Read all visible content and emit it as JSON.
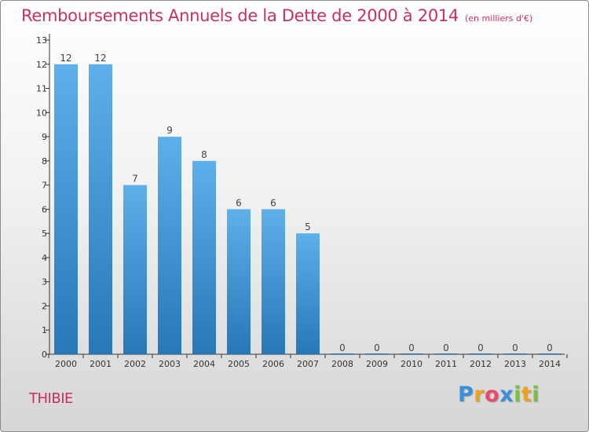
{
  "header": {
    "title": "Remboursements Annuels de la Dette de 2000 à 2014",
    "subtitle": "(en milliers d'€)"
  },
  "footer": {
    "commune": "THIBIE",
    "logo": "Proxiti"
  },
  "colors": {
    "title": "#c8325a",
    "bar_top": "#5db0ea",
    "bar_bottom": "#2877b8",
    "axis": "#333333"
  },
  "chart_data": {
    "type": "bar",
    "categories": [
      "2000",
      "2001",
      "2002",
      "2003",
      "2004",
      "2005",
      "2006",
      "2007",
      "2008",
      "2009",
      "2010",
      "2011",
      "2012",
      "2013",
      "2014"
    ],
    "values": [
      12,
      12,
      7,
      9,
      8,
      6,
      6,
      5,
      0,
      0,
      0,
      0,
      0,
      0,
      0
    ],
    "ylim": [
      0,
      13
    ],
    "yticks": [
      0,
      1,
      2,
      3,
      4,
      5,
      6,
      7,
      8,
      9,
      10,
      11,
      12,
      13
    ],
    "grid": false,
    "data_labels": true
  }
}
